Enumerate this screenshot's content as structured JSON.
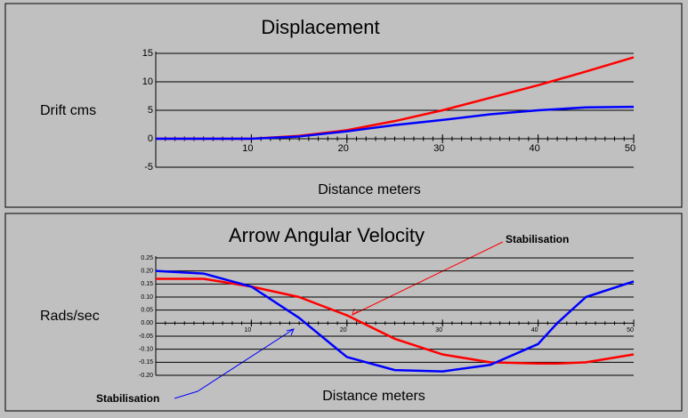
{
  "chart_data": [
    {
      "type": "line",
      "title": "Displacement",
      "y_label": "Drift cms",
      "x_label": "Distance meters",
      "x": [
        0,
        5,
        10,
        15,
        20,
        25,
        30,
        35,
        40,
        45,
        50
      ],
      "series": [
        {
          "color": "#ff0000",
          "values": [
            0,
            0,
            0,
            0.5,
            1.5,
            3.1,
            5,
            7.2,
            9.4,
            11.8,
            14.3
          ]
        },
        {
          "color": "#0000ff",
          "values": [
            0,
            0,
            0,
            0.4,
            1.3,
            2.4,
            3.3,
            4.3,
            5,
            5.5,
            5.6
          ]
        }
      ],
      "xlim": [
        0,
        50
      ],
      "xticks": [
        10,
        20,
        30,
        40,
        50
      ],
      "ylim": [
        -5,
        15
      ],
      "yticks": [
        -5,
        0,
        5,
        10,
        15
      ],
      "grid": true
    },
    {
      "type": "line",
      "title": "Arrow Angular Velocity",
      "y_label": "Rads/sec",
      "x_label": "Distance meters",
      "x": [
        0,
        5,
        10,
        15,
        20,
        25,
        30,
        35,
        40,
        42,
        45,
        50
      ],
      "series": [
        {
          "color": "#ff0000",
          "values": [
            0.17,
            0.17,
            0.14,
            0.1,
            0.03,
            -0.06,
            -0.12,
            -0.15,
            -0.155,
            -0.155,
            -0.15,
            -0.12
          ]
        },
        {
          "color": "#0000ff",
          "values": [
            0.2,
            0.19,
            0.14,
            0.02,
            -0.13,
            -0.18,
            -0.185,
            -0.16,
            -0.08,
            0,
            0.1,
            0.16
          ]
        }
      ],
      "xlim": [
        0,
        50
      ],
      "xticks": [
        10,
        20,
        30,
        40,
        50
      ],
      "ylim": [
        -0.2,
        0.25
      ],
      "yticks": [
        0.25,
        {
          "value": 0.2,
          "label": "0.20"
        },
        0.15,
        {
          "value": 0.1,
          "label": "0.10"
        },
        0.05,
        {
          "value": 0,
          "label": "0.00"
        },
        -0.05,
        {
          "value": -0.1,
          "label": "-0.10"
        },
        -0.15,
        {
          "value": -0.2,
          "label": "-0.20"
        }
      ],
      "grid": true,
      "annotations": [
        {
          "text": "Stabilisation",
          "color": "#ff0000"
        },
        {
          "text": "Stabilisation",
          "color": "#0000ff"
        }
      ]
    }
  ]
}
